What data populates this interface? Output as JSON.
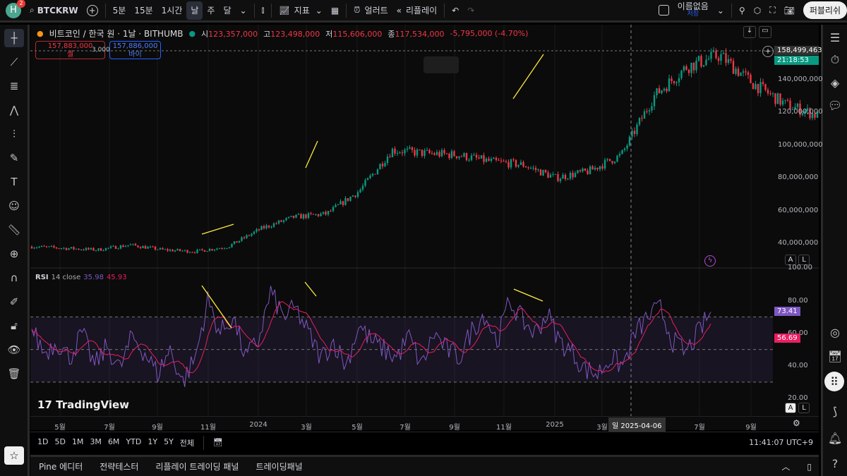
{
  "toolbar": {
    "avatar_letter": "H",
    "notifications": "2",
    "symbol": "BTCKRW",
    "intervals": [
      "5분",
      "15분",
      "1시간",
      "날",
      "주",
      "달"
    ],
    "active_interval": "날",
    "indicators": "지표",
    "alert": "얼러트",
    "replay": "리플레이",
    "layout_name": "이름없음",
    "layout_status": "저장",
    "publish": "퍼블리쉬"
  },
  "legend": {
    "title": "비트코인 / 한국 원 · 1날 · BITHUMB",
    "o_label": "시",
    "o": "123,357,000",
    "h_label": "고",
    "h": "123,498,000",
    "l_label": "저",
    "l": "115,606,000",
    "c_label": "종",
    "c": "117,534,000",
    "change": "-5,795,000 (-4.70%)"
  },
  "trade": {
    "sell_price": "157,883,000",
    "sell_label": "셀",
    "spread": "3,000",
    "buy_price": "157,886,000",
    "buy_label": "바이"
  },
  "price_axis": {
    "labels": [
      "140,000,000",
      "120,000,000",
      "100,000,000",
      "80,000,000",
      "60,000,000",
      "40,000,000"
    ],
    "last_price": "158,499,463",
    "countdown": "21:18:53"
  },
  "rsi": {
    "label": "RSI",
    "params": "14 close",
    "value": "35.98",
    "ma_value": "45.93",
    "axis": [
      "100.00",
      "80.00",
      "60.00",
      "40.00",
      "20.00"
    ],
    "tag_rsi": "73.41",
    "tag_ma": "56.69"
  },
  "time_axis": {
    "labels": [
      "5월",
      "7월",
      "9월",
      "11월",
      "2024",
      "3월",
      "5월",
      "7월",
      "9월",
      "11월",
      "2025",
      "3월",
      "7월",
      "9월"
    ],
    "crosshair_date": "일 2025-04-06"
  },
  "ranges": [
    "1D",
    "5D",
    "1M",
    "3M",
    "6M",
    "YTD",
    "1Y",
    "5Y",
    "전체"
  ],
  "clock": "11:41:07 UTC+9",
  "bottom_tabs": [
    "Pine 에디터",
    "전략테스터",
    "리플레이 트레이딩 패널",
    "트레이딩패널"
  ],
  "logo": "TradingView",
  "colors": {
    "up": "#089981",
    "down": "#f23645",
    "rsi": "#7e57c2",
    "rsi_ma": "#e91e63",
    "divergence": "#ffeb3b",
    "accent": "#2962ff"
  },
  "chart_data": {
    "type": "candlestick",
    "months": [
      "2023-04",
      "2023-05",
      "2023-06",
      "2023-07",
      "2023-08",
      "2023-09",
      "2023-10",
      "2023-11",
      "2023-12",
      "2024-01",
      "2024-02",
      "2024-03",
      "2024-04",
      "2024-05",
      "2024-06",
      "2024-07",
      "2024-08",
      "2024-09",
      "2024-10",
      "2024-11",
      "2024-12",
      "2025-01",
      "2025-02",
      "2025-03",
      "2025-04",
      "2025-05",
      "2025-06",
      "2025-07"
    ],
    "close": [
      38,
      37,
      36,
      39,
      36,
      35,
      38,
      49,
      56,
      58,
      72,
      97,
      95,
      94,
      90,
      88,
      80,
      84,
      94,
      130,
      148,
      155,
      138,
      125,
      118,
      145,
      150,
      158.5
    ],
    "rsi": [
      62,
      48,
      55,
      45,
      60,
      40,
      52,
      38,
      58,
      48,
      35,
      50,
      30,
      45,
      80,
      60,
      70,
      45,
      55,
      85,
      70,
      75,
      60,
      45,
      55,
      40,
      65,
      55,
      50,
      45,
      58,
      40,
      60,
      50,
      45,
      62,
      72,
      55,
      80,
      68,
      60,
      72,
      55,
      48,
      38,
      35,
      45,
      40,
      60,
      70,
      75,
      55,
      48,
      60,
      73
    ]
  }
}
